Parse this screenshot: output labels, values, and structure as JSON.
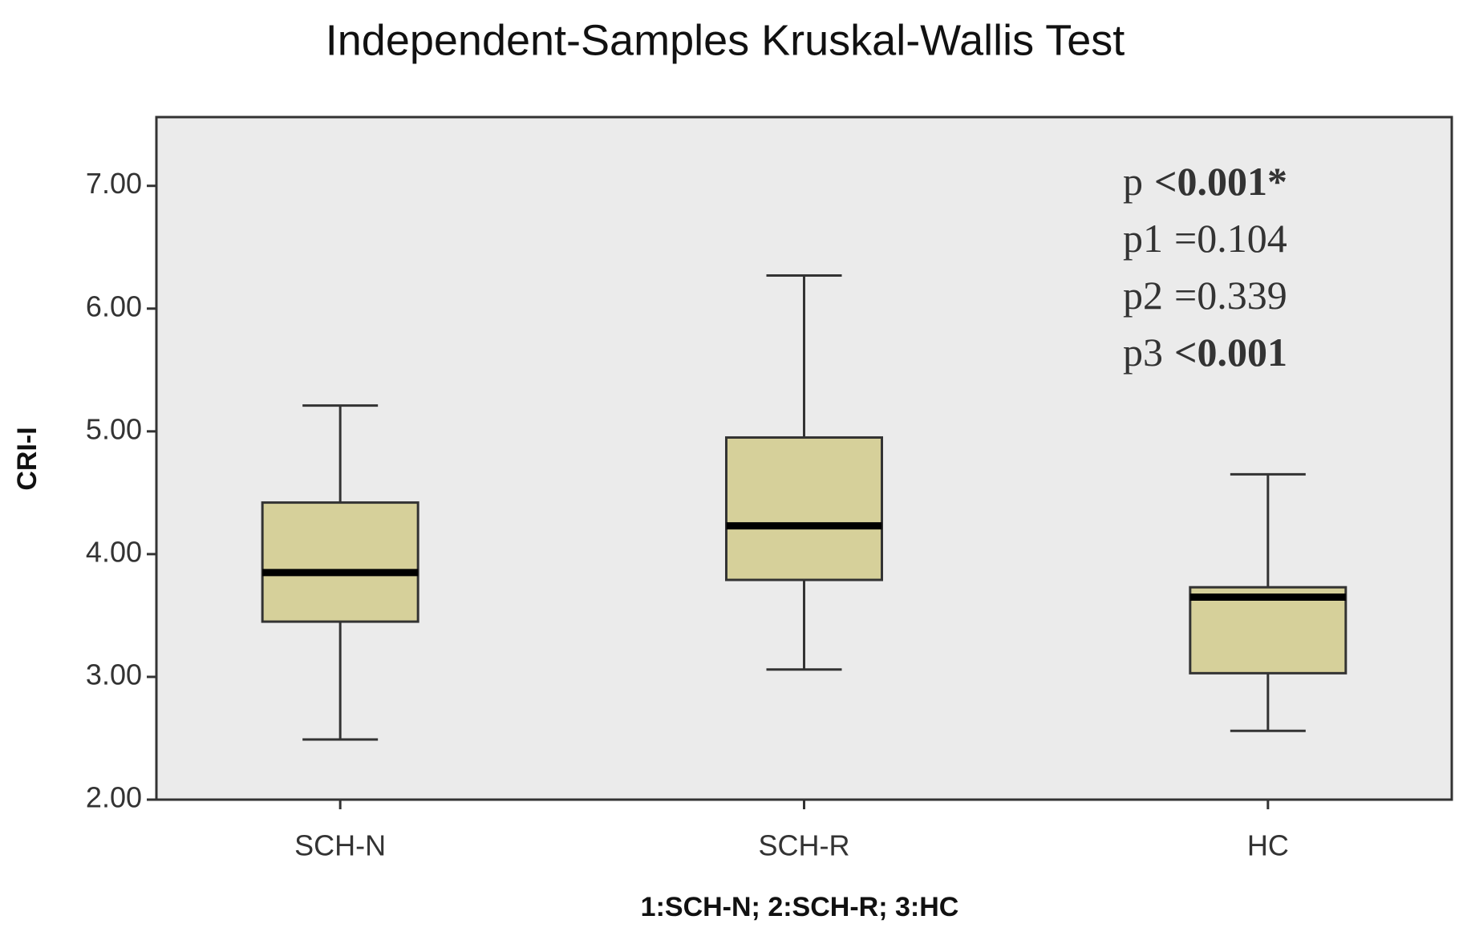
{
  "chart_data": {
    "type": "box",
    "title": "Independent-Samples Kruskal-Wallis Test",
    "y_label": "CRI-I",
    "x_label": "1:SCH-N; 2:SCH-R; 3:HC",
    "categories": [
      "SCH-N",
      "SCH-R",
      "HC"
    ],
    "boxes": [
      {
        "min": 2.49,
        "q1": 3.45,
        "median": 3.85,
        "q3": 4.42,
        "max": 5.21
      },
      {
        "min": 3.06,
        "q1": 3.79,
        "median": 4.23,
        "q3": 4.95,
        "max": 6.27
      },
      {
        "min": 2.56,
        "q1": 3.03,
        "median": 3.65,
        "q3": 3.73,
        "max": 4.65
      }
    ],
    "color": "#d6d09a",
    "plot_background": "#ebebeb",
    "ylim": [
      2,
      7.56
    ],
    "yticks": [
      {
        "value": 2,
        "label": "2.00"
      },
      {
        "value": 3,
        "label": "3.00"
      },
      {
        "value": 4,
        "label": "4.00"
      },
      {
        "value": 5,
        "label": "5.00"
      },
      {
        "value": 6,
        "label": "6.00"
      },
      {
        "value": 7,
        "label": "7.00"
      }
    ],
    "annotations": [
      [
        {
          "text": "p",
          "bold": false
        },
        {
          "text": "<0.001*",
          "bold": true
        }
      ],
      [
        {
          "text": "p1",
          "bold": false
        },
        {
          "text": "=0.104",
          "bold": false
        }
      ],
      [
        {
          "text": "p2",
          "bold": false
        },
        {
          "text": "=0.339",
          "bold": false
        }
      ],
      [
        {
          "text": "p3",
          "bold": false
        },
        {
          "text": "<0.001",
          "bold": true
        }
      ]
    ]
  }
}
